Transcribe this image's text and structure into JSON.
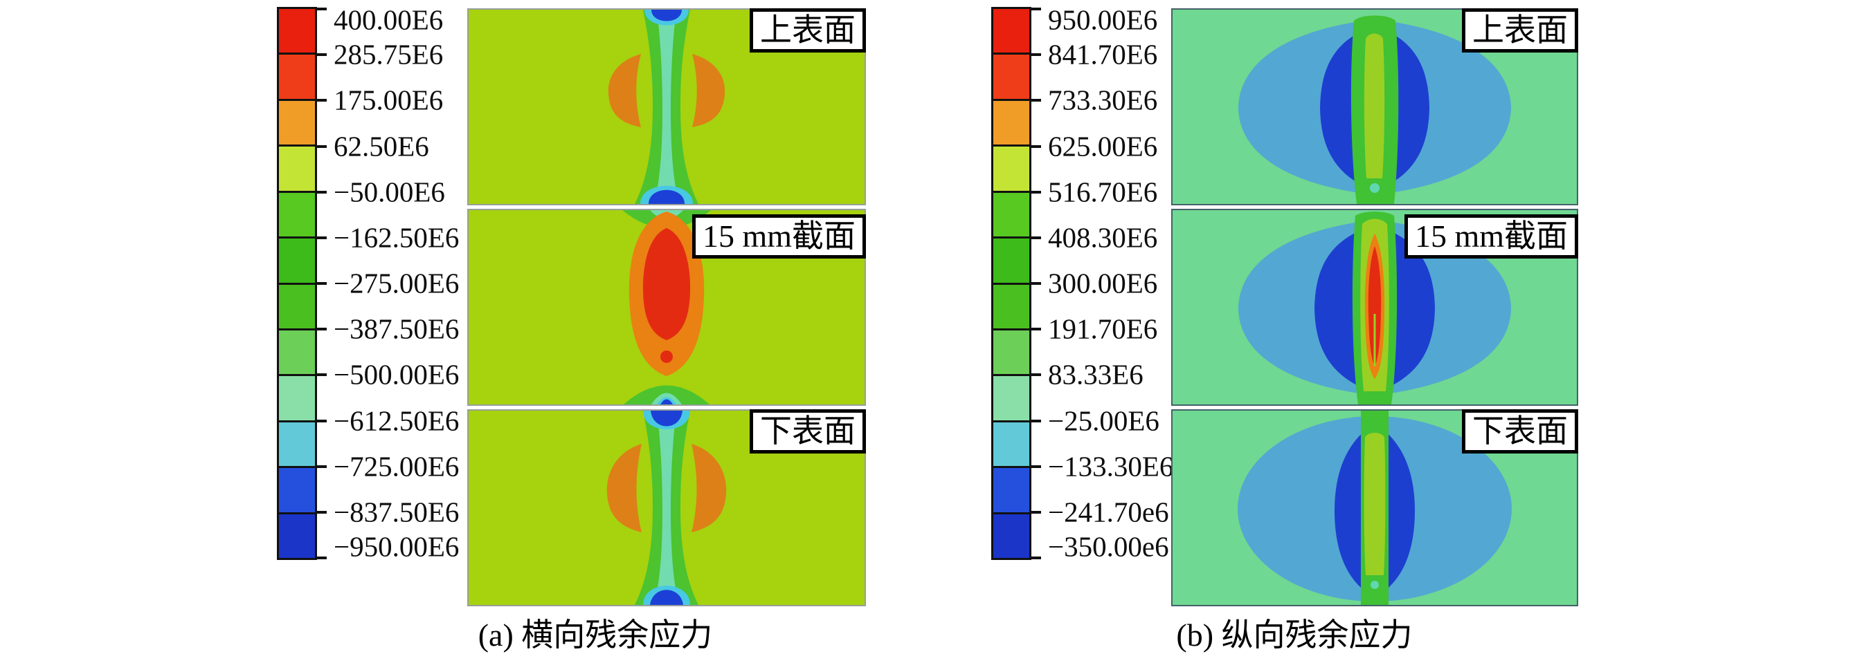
{
  "figures": [
    {
      "caption": "(a) 横向残余应力",
      "panel_labels": [
        "上表面",
        "15 mm截面",
        "下表面"
      ],
      "legend_labels": [
        "400.00E6",
        "285.75E6",
        "175.00E6",
        "62.50E6",
        "−50.00E6",
        "−162.50E6",
        "−275.00E6",
        "−387.50E6",
        "−500.00E6",
        "−612.50E6",
        "−725.00E6",
        "−837.50E6",
        "−950.00E6"
      ]
    },
    {
      "caption": "(b) 纵向残余应力",
      "panel_labels": [
        "上表面",
        "15 mm截面",
        "下表面"
      ],
      "legend_labels": [
        "950.00E6",
        "841.70E6",
        "733.30E6",
        "625.00E6",
        "516.70E6",
        "408.30E6",
        "300.00E6",
        "191.70E6",
        "83.33E6",
        "−25.00E6",
        "−133.30E6",
        "−241.70e6",
        "−350.00e6"
      ]
    }
  ],
  "palette": [
    "#e8200d",
    "#ee3d18",
    "#f09d28",
    "#c3e435",
    "#57c920",
    "#3dbb1a",
    "#4abf20",
    "#6ccf58",
    "#8adfa8",
    "#62c9d8",
    "#2450dd",
    "#1b35c8"
  ],
  "plot_colors": {
    "bgA": "#a6d20e",
    "bgB": "#6fd892",
    "weld-green": "#4cc32f",
    "weld-teal": "#72dcae",
    "fringe-cyan": "#49c8e4",
    "tip-blue": "#1c40d6",
    "kidney-orange": "#dd8018",
    "core-orange": "#ea8113",
    "core-red": "#e32b12",
    "lens-blue": "#52a8d2",
    "crescent-blue": "#1d3fd0",
    "band-green": "#41c134",
    "band-yellow": "#9ad023",
    "dot-teal": "#5fd8b0"
  },
  "chart_data": [
    {
      "type": "heatmap",
      "subtype": "FE contour plots (3 stacked sections)",
      "title": "(a) 横向残余应力",
      "panels": [
        "上表面",
        "15 mm截面",
        "下表面"
      ],
      "legend": {
        "position": "left",
        "units": "Pa",
        "tick_labels": [
          "400.00E6",
          "285.75E6",
          "175.00E6",
          "62.50E6",
          "−50.00E6",
          "−162.50E6",
          "−275.00E6",
          "−387.50E6",
          "−500.00E6",
          "−612.50E6",
          "−725.00E6",
          "−837.50E6",
          "−950.00E6"
        ],
        "values_pa": [
          400000000.0,
          285750000.0,
          175000000.0,
          62500000.0,
          -50000000.0,
          -162500000.0,
          -275000000.0,
          -387500000.0,
          -500000000.0,
          -612500000.0,
          -725000000.0,
          -837500000.0,
          -950000000.0
        ],
        "colors_top_to_bottom": [
          "#e8200d",
          "#ee3d18",
          "#f09d28",
          "#c3e435",
          "#57c920",
          "#3dbb1a",
          "#4abf20",
          "#6ccf58",
          "#8adfa8",
          "#62c9d8",
          "#2450dd",
          "#1b35c8"
        ]
      },
      "range_pa": [
        -950000000.0,
        400000000.0
      ],
      "notes": "上表面/下表面: tensile orange lobes flank a compressive green-teal weld line with blue ends; 15 mm截面: high tensile red-orange zone centered on weld line."
    },
    {
      "type": "heatmap",
      "subtype": "FE contour plots (3 stacked sections)",
      "title": "(b) 纵向残余应力",
      "panels": [
        "上表面",
        "15 mm截面",
        "下表面"
      ],
      "legend": {
        "position": "left",
        "units": "Pa",
        "tick_labels": [
          "950.00E6",
          "841.70E6",
          "733.30E6",
          "625.00E6",
          "516.70E6",
          "408.30E6",
          "300.00E6",
          "191.70E6",
          "83.33E6",
          "−25.00E6",
          "−133.30E6",
          "−241.70e6",
          "−350.00e6"
        ],
        "values_pa": [
          950000000.0,
          841700000.0,
          733300000.0,
          625000000.0,
          516700000.0,
          408300000.0,
          300000000.0,
          191700000.0,
          83330000.0,
          -25000000.0,
          -133300000.0,
          -241700000.0,
          -350000000.0
        ],
        "colors_top_to_bottom": [
          "#e8200d",
          "#ee3d18",
          "#f09d28",
          "#c3e435",
          "#57c920",
          "#3dbb1a",
          "#4abf20",
          "#6ccf58",
          "#8adfa8",
          "#62c9d8",
          "#2450dd",
          "#1b35c8"
        ]
      },
      "range_pa": [
        -350000000.0,
        950000000.0
      ],
      "notes": "Eye-shaped light-blue compressive lens with dark-blue crescents around a green/yellow tensile weld band; 15 mm截面 shows red-orange peak tensile core at weld center."
    }
  ]
}
